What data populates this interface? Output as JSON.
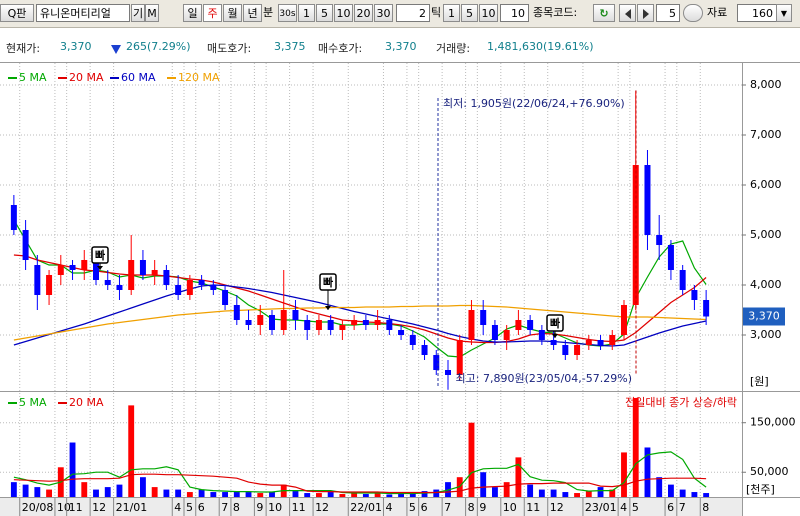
{
  "toolbar": {
    "search_icon": "Q판",
    "stock_name": "유니온머티리얼",
    "buttons_a": [
      "기",
      "M"
    ],
    "periods": [
      "일",
      "주",
      "월",
      "년"
    ],
    "selected_period_index": 1,
    "minute_label": "분",
    "minute_options": [
      "30s",
      "1",
      "5",
      "10",
      "20",
      "30"
    ],
    "tick_input": "2",
    "tick_label": "틱",
    "tick_options": [
      "1",
      "5",
      "10"
    ],
    "count_input": "10",
    "code_label": "종목코드:",
    "step_input": "5",
    "data_label": "자료",
    "data_count": "160"
  },
  "quote": {
    "price_label": "현재가:",
    "price": "3,370",
    "change": "265(7.29%)",
    "ask_label": "매도호가:",
    "ask": "3,375",
    "bid_label": "매수호가:",
    "bid": "3,370",
    "volume_label": "거래량:",
    "volume": "1,481,630(19.61%)"
  },
  "chart_data": {
    "type": "candlestick",
    "up_color": "#ff0000",
    "down_color": "#0000ff",
    "grid": true,
    "categories": [
      null,
      "20/08",
      null,
      null,
      "10",
      "11",
      null,
      "12",
      null,
      "21/01",
      null,
      null,
      null,
      null,
      "4",
      "5",
      "6",
      null,
      "7",
      "8",
      null,
      "9",
      "10",
      null,
      "11",
      null,
      "12",
      null,
      null,
      "22/01",
      null,
      null,
      "4",
      null,
      "5",
      "6",
      null,
      "7",
      null,
      "8",
      "9",
      null,
      "10",
      null,
      "11",
      null,
      "12",
      null,
      null,
      "23/01",
      null,
      null,
      "4",
      "5",
      null,
      null,
      "6",
      "7",
      null,
      "8"
    ],
    "open": [
      5600,
      5100,
      4400,
      3800,
      4200,
      4400,
      4300,
      4500,
      4100,
      4000,
      3900,
      4500,
      4200,
      4300,
      4000,
      3800,
      4100,
      4000,
      3900,
      3600,
      3300,
      3200,
      3400,
      3100,
      3500,
      3300,
      3100,
      3300,
      3100,
      3200,
      3300,
      3200,
      3300,
      3100,
      3000,
      2800,
      2600,
      2300,
      2200,
      2900,
      3500,
      3200,
      2900,
      3100,
      3300,
      3100,
      2900,
      2800,
      2600,
      2800,
      2900,
      2800,
      3000,
      3600,
      6400,
      5000,
      4800,
      4300,
      3900,
      3700
    ],
    "high": [
      5800,
      5300,
      4600,
      4300,
      4600,
      4500,
      4700,
      4600,
      4300,
      4200,
      5000,
      4700,
      4500,
      4400,
      4200,
      4200,
      4200,
      4100,
      4000,
      3800,
      3500,
      3600,
      3500,
      4300,
      3700,
      3400,
      3400,
      3400,
      3300,
      3400,
      3400,
      3500,
      3400,
      3200,
      3100,
      2900,
      2700,
      2500,
      3000,
      3700,
      3700,
      3300,
      3200,
      3500,
      3400,
      3200,
      3300,
      2900,
      2900,
      3000,
      3000,
      3100,
      3700,
      7890,
      6700,
      5400,
      4900,
      4400,
      4000,
      3900
    ],
    "low": [
      5000,
      4300,
      3500,
      3600,
      4000,
      4100,
      4100,
      4000,
      3900,
      3700,
      3800,
      4100,
      4000,
      3900,
      3700,
      3700,
      3900,
      3800,
      3500,
      3200,
      3100,
      3000,
      3000,
      3000,
      3100,
      2900,
      3000,
      3000,
      2900,
      3100,
      3100,
      3100,
      3000,
      2900,
      2700,
      2500,
      2200,
      1905,
      2100,
      2800,
      3000,
      2800,
      2700,
      3000,
      3000,
      2800,
      2700,
      2500,
      2500,
      2700,
      2700,
      2700,
      2900,
      3500,
      4700,
      4500,
      4100,
      3800,
      3500,
      3200
    ],
    "close": [
      5100,
      4500,
      3800,
      4200,
      4400,
      4300,
      4500,
      4100,
      4000,
      3900,
      4500,
      4200,
      4300,
      4000,
      3800,
      4100,
      4000,
      3900,
      3600,
      3300,
      3200,
      3400,
      3100,
      3500,
      3300,
      3100,
      3300,
      3100,
      3200,
      3300,
      3200,
      3300,
      3100,
      3000,
      2800,
      2600,
      2300,
      2200,
      2900,
      3500,
      3200,
      2900,
      3100,
      3300,
      3100,
      2900,
      2800,
      2600,
      2800,
      2900,
      2800,
      3000,
      3600,
      6400,
      5000,
      4800,
      4300,
      3900,
      3700,
      3370
    ],
    "series": [
      {
        "name": "5 MA",
        "color": "#00a800",
        "values": [
          5300,
          4900,
          4500,
          4400,
          4400,
          4240,
          4240,
          4300,
          4260,
          4160,
          4200,
          4140,
          4180,
          4180,
          4160,
          4080,
          4040,
          3960,
          3880,
          3780,
          3600,
          3480,
          3320,
          3300,
          3300,
          3280,
          3260,
          3260,
          3200,
          3200,
          3220,
          3220,
          3220,
          3180,
          3080,
          2960,
          2760,
          2580,
          2560,
          2700,
          2820,
          2940,
          3120,
          3200,
          3120,
          3060,
          3040,
          2940,
          2840,
          2800,
          2780,
          2820,
          3020,
          3740,
          4160,
          4560,
          4820,
          4880,
          4340,
          4010
        ]
      },
      {
        "name": "20 MA",
        "color": "#e00000",
        "values": [
          4600,
          4580,
          4500,
          4450,
          4400,
          4350,
          4300,
          4280,
          4250,
          4220,
          4200,
          4200,
          4200,
          4180,
          4150,
          4120,
          4100,
          4060,
          4000,
          3940,
          3880,
          3800,
          3720,
          3640,
          3560,
          3480,
          3420,
          3360,
          3300,
          3280,
          3260,
          3250,
          3230,
          3200,
          3160,
          3100,
          3020,
          2940,
          2880,
          2860,
          2850,
          2850,
          2870,
          2920,
          3000,
          3030,
          3020,
          2990,
          2950,
          2910,
          2880,
          2870,
          2900,
          3050,
          3250,
          3450,
          3650,
          3800,
          3950,
          4150
        ]
      },
      {
        "name": "60 MA",
        "color": "#0000c0",
        "values": [
          2800,
          2870,
          2940,
          3010,
          3080,
          3150,
          3220,
          3300,
          3380,
          3460,
          3540,
          3620,
          3700,
          3780,
          3850,
          3920,
          3980,
          4000,
          3990,
          3960,
          3930,
          3890,
          3850,
          3800,
          3750,
          3700,
          3650,
          3590,
          3530,
          3470,
          3420,
          3370,
          3320,
          3270,
          3220,
          3160,
          3100,
          3030,
          2970,
          2920,
          2880,
          2860,
          2860,
          2870,
          2880,
          2880,
          2870,
          2850,
          2830,
          2810,
          2790,
          2780,
          2800,
          2880,
          2960,
          3040,
          3110,
          3180,
          3230,
          3280
        ]
      },
      {
        "name": "120 MA",
        "color": "#f0a000",
        "values": [
          2900,
          2940,
          2980,
          3020,
          3060,
          3100,
          3140,
          3180,
          3220,
          3250,
          3280,
          3310,
          3340,
          3370,
          3400,
          3420,
          3440,
          3460,
          3480,
          3490,
          3500,
          3510,
          3520,
          3530,
          3530,
          3540,
          3540,
          3550,
          3550,
          3550,
          3560,
          3560,
          3560,
          3570,
          3570,
          3580,
          3580,
          3580,
          3590,
          3590,
          3580,
          3570,
          3560,
          3540,
          3520,
          3500,
          3480,
          3460,
          3440,
          3420,
          3400,
          3380,
          3360,
          3360,
          3360,
          3350,
          3340,
          3330,
          3320,
          3310
        ]
      }
    ],
    "ylim": [
      1900,
      8400
    ],
    "yticks": [
      {
        "value": 3000,
        "label": "3,000"
      },
      {
        "value": 4000,
        "label": "4,000"
      },
      {
        "value": 5000,
        "label": "5,000"
      },
      {
        "value": 6000,
        "label": "6,000"
      },
      {
        "value": 7000,
        "label": "7,000"
      },
      {
        "value": 8000,
        "label": "8,000"
      }
    ],
    "y_unit": "[원]",
    "current_price_label": "3,370",
    "annotations": [
      "최저: 1,905원(22/06/24,+76.90%)",
      "최고: 7,890원(23/05/04,-57.29%)"
    ],
    "signals": [
      "빠",
      "빠",
      "빠"
    ],
    "volume": {
      "values": [
        30000,
        25000,
        20000,
        15000,
        60000,
        110000,
        30000,
        15000,
        20000,
        25000,
        185000,
        40000,
        20000,
        15000,
        15000,
        10000,
        15000,
        10000,
        10000,
        12000,
        10000,
        8000,
        10000,
        25000,
        12000,
        8000,
        8000,
        10000,
        6000,
        8000,
        6000,
        8000,
        5000,
        6000,
        8000,
        12000,
        15000,
        30000,
        40000,
        150000,
        50000,
        20000,
        30000,
        80000,
        25000,
        15000,
        15000,
        10000,
        8000,
        12000,
        20000,
        15000,
        90000,
        200000,
        100000,
        40000,
        25000,
        15000,
        10000,
        8000
      ],
      "series": [
        {
          "name": "5 MA",
          "color": "#00a800",
          "values": [
            40000,
            35000,
            28000,
            24000,
            30000,
            46000,
            47000,
            50000,
            50000,
            40000,
            55000,
            57000,
            57000,
            61000,
            55000,
            20000,
            15000,
            13000,
            12000,
            11000,
            11000,
            10000,
            10000,
            13000,
            13000,
            13000,
            13000,
            13000,
            9000,
            8000,
            8000,
            8000,
            7000,
            7000,
            7000,
            8000,
            9000,
            14000,
            21000,
            49000,
            57000,
            58000,
            58000,
            66000,
            41000,
            34000,
            33000,
            29000,
            15000,
            12000,
            13000,
            13000,
            29000,
            67000,
            85000,
            89000,
            91000,
            76000,
            38000,
            20000
          ]
        },
        {
          "name": "20 MA",
          "color": "#e00000",
          "values": [
            35000,
            34000,
            33000,
            32000,
            33000,
            36000,
            37000,
            37000,
            37000,
            38000,
            45000,
            46000,
            46000,
            45000,
            45000,
            44000,
            43000,
            42000,
            40000,
            38000,
            30000,
            26000,
            24000,
            24000,
            20000,
            12000,
            11000,
            11000,
            10000,
            10000,
            10000,
            10000,
            9000,
            9000,
            9000,
            9000,
            9000,
            10000,
            12000,
            18000,
            20000,
            21000,
            22000,
            26000,
            27000,
            27000,
            28000,
            28000,
            28000,
            28000,
            22000,
            21000,
            24000,
            32000,
            36000,
            37000,
            38000,
            38000,
            38000,
            37000
          ]
        }
      ],
      "ylim": [
        0,
        210000
      ],
      "yticks": [
        {
          "value": 50000,
          "label": "50,000"
        },
        {
          "value": 150000,
          "label": "150,000"
        }
      ],
      "unit": "[천주]",
      "legend_note": "전일대비 종가 상승/하락"
    }
  }
}
